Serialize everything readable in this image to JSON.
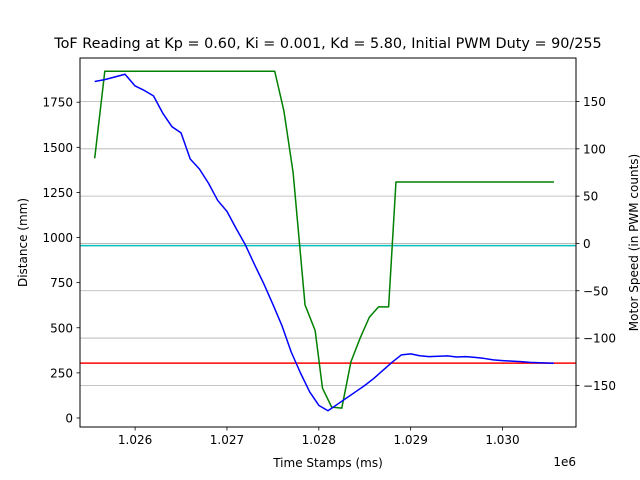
{
  "chart_data": {
    "type": "line",
    "title": "ToF Reading at Kp = 0.60, Ki = 0.001, Kd = 5.80, Initial PWM Duty = 90/255",
    "xlabel": "Time Stamps (ms)",
    "x_offset_label": "1e6",
    "ylabel_left": "Distance (mm)",
    "ylabel_right": "Motor Speed (in PWM counts)",
    "xlim": [
      1025.4,
      1030.8
    ],
    "ylim_left": [
      -50,
      1995
    ],
    "ylim_right": [
      -194,
      196
    ],
    "x_ticks": [
      1026,
      1027,
      1028,
      1029,
      1030
    ],
    "x_tick_labels": [
      "1.026",
      "1.027",
      "1.028",
      "1.029",
      "1.030"
    ],
    "y_left_ticks": [
      0,
      250,
      500,
      750,
      1000,
      1250,
      1500,
      1750
    ],
    "y_right_ticks": [
      -150,
      -100,
      -50,
      0,
      50,
      100,
      150
    ],
    "grid": "right-axis horizontal",
    "distance_series": {
      "color": "#0000ff",
      "x": [
        1025.56,
        1025.67,
        1025.89,
        1026.0,
        1026.1,
        1026.2,
        1026.3,
        1026.4,
        1026.5,
        1026.6,
        1026.7,
        1026.8,
        1026.9,
        1027.0,
        1027.1,
        1027.2,
        1027.3,
        1027.4,
        1027.5,
        1027.6,
        1027.7,
        1027.8,
        1027.9,
        1028.0,
        1028.1,
        1028.2,
        1028.3,
        1028.4,
        1028.5,
        1028.6,
        1028.7,
        1028.8,
        1028.9,
        1029.0,
        1029.1,
        1029.2,
        1029.3,
        1029.4,
        1029.5,
        1029.6,
        1029.7,
        1029.8,
        1029.9,
        1030.0,
        1030.1,
        1030.2,
        1030.3,
        1030.4,
        1030.56
      ],
      "y": [
        1865,
        1875,
        1905,
        1840,
        1815,
        1785,
        1690,
        1615,
        1580,
        1435,
        1380,
        1300,
        1205,
        1145,
        1050,
        960,
        850,
        745,
        630,
        510,
        365,
        250,
        145,
        70,
        40,
        75,
        110,
        145,
        180,
        220,
        265,
        310,
        350,
        355,
        345,
        340,
        342,
        344,
        338,
        340,
        336,
        330,
        322,
        318,
        315,
        312,
        308,
        306,
        303
      ]
    },
    "motor_series": {
      "color": "#008000",
      "x": [
        1025.56,
        1025.67,
        1025.7,
        1027.52,
        1027.62,
        1027.72,
        1027.85,
        1027.96,
        1028.04,
        1028.14,
        1028.25,
        1028.35,
        1028.45,
        1028.55,
        1028.65,
        1028.76,
        1028.84,
        1028.9,
        1030.56
      ],
      "y": [
        90,
        182,
        182,
        182,
        140,
        75,
        -65,
        -92,
        -153,
        -173,
        -174,
        -125,
        -100,
        -78,
        -67,
        -67,
        65,
        65,
        65
      ]
    },
    "reference_lines": [
      {
        "axis": "left",
        "value": 955,
        "color": "#00bfbf"
      },
      {
        "axis": "left",
        "value": 304,
        "color": "#ff0000"
      }
    ]
  }
}
